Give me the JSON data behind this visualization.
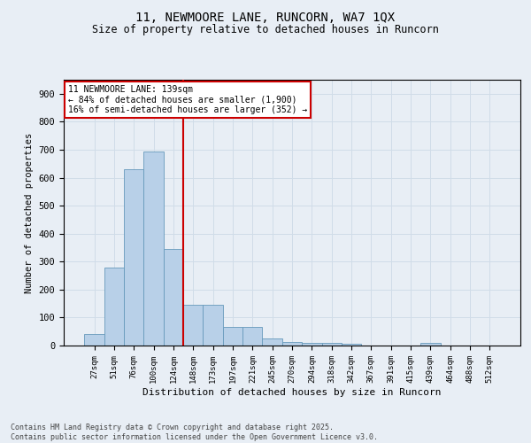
{
  "title_line1": "11, NEWMOORE LANE, RUNCORN, WA7 1QX",
  "title_line2": "Size of property relative to detached houses in Runcorn",
  "xlabel": "Distribution of detached houses by size in Runcorn",
  "ylabel": "Number of detached properties",
  "footnote": "Contains HM Land Registry data © Crown copyright and database right 2025.\nContains public sector information licensed under the Open Government Licence v3.0.",
  "bar_labels": [
    "27sqm",
    "51sqm",
    "76sqm",
    "100sqm",
    "124sqm",
    "148sqm",
    "173sqm",
    "197sqm",
    "221sqm",
    "245sqm",
    "270sqm",
    "294sqm",
    "318sqm",
    "342sqm",
    "367sqm",
    "391sqm",
    "415sqm",
    "439sqm",
    "464sqm",
    "488sqm",
    "512sqm"
  ],
  "bar_values": [
    40,
    280,
    630,
    695,
    345,
    145,
    145,
    65,
    65,
    25,
    13,
    10,
    10,
    5,
    0,
    0,
    0,
    8,
    0,
    0,
    0
  ],
  "bar_color": "#b8d0e8",
  "bar_edge_color": "#6699bb",
  "grid_color": "#d0dce8",
  "background_color": "#e8eef5",
  "vline_color": "#cc0000",
  "annotation_text": "11 NEWMOORE LANE: 139sqm\n← 84% of detached houses are smaller (1,900)\n16% of semi-detached houses are larger (352) →",
  "annotation_box_color": "#ffffff",
  "annotation_edge_color": "#cc0000",
  "ylim": [
    0,
    950
  ],
  "yticks": [
    0,
    100,
    200,
    300,
    400,
    500,
    600,
    700,
    800,
    900
  ]
}
